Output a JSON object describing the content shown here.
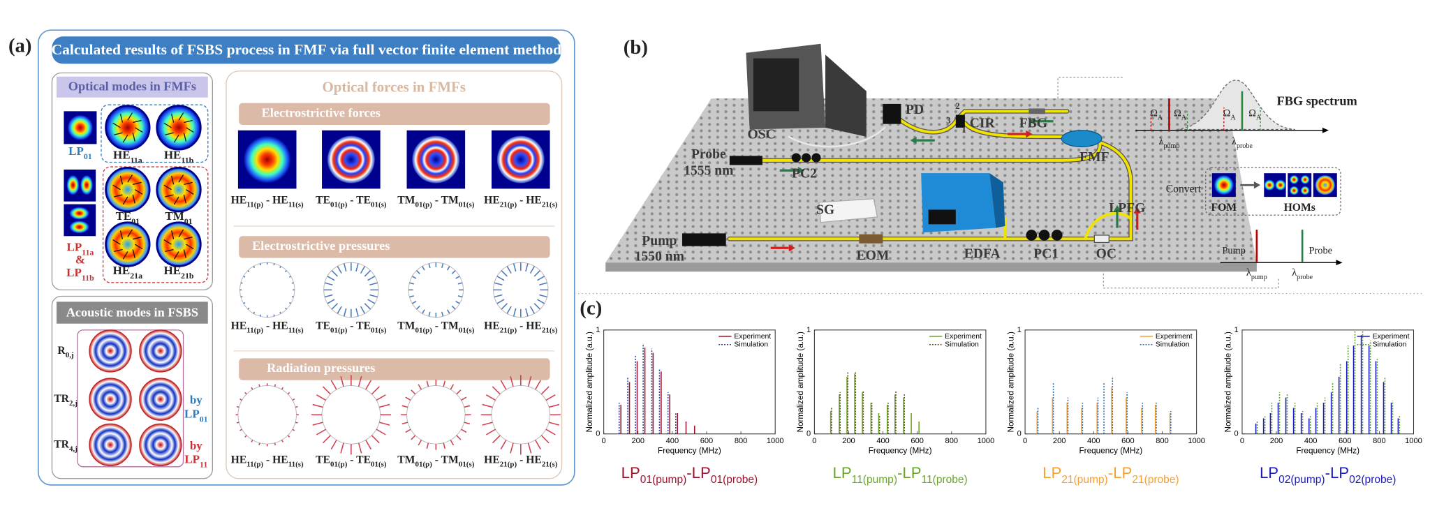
{
  "panel_a": {
    "label": "(a)",
    "title": "Calculated results of FSBS process in FMF via full vector finite element method",
    "optical_modes": {
      "heading": "Optical modes in FMFs",
      "modes": [
        [
          "LP",
          "01"
        ],
        [
          "HE",
          "11a"
        ],
        [
          "HE",
          "11b"
        ],
        [
          "TE",
          "01"
        ],
        [
          "TM",
          "01"
        ],
        [
          "HE",
          "21a"
        ],
        [
          "HE",
          "21b"
        ]
      ],
      "lp11": [
        [
          "LP",
          "11a"
        ],
        [
          "&"
        ],
        [
          "LP",
          "11b"
        ]
      ]
    },
    "acoustic_modes": {
      "heading": "Acoustic modes in FSBS",
      "rows": [
        [
          "R",
          "0,j"
        ],
        [
          "TR",
          "2,j"
        ],
        [
          "TR",
          "4,j"
        ]
      ],
      "by_lp01": [
        [
          "by"
        ],
        [
          "LP",
          "01"
        ]
      ],
      "by_lp11": [
        [
          "by"
        ],
        [
          "LP",
          "11"
        ]
      ]
    },
    "optical_forces": {
      "heading": "Optical forces in FMFs",
      "sections": [
        {
          "title": "Electrostrictive forces",
          "labels": [
            [
              "HE",
              "11(p)",
              " - HE",
              "11(s)"
            ],
            [
              "TE",
              "01(p)",
              " - TE",
              "01(s)"
            ],
            [
              "TM",
              "01(p)",
              " - TM",
              "01(s)"
            ],
            [
              "HE",
              "21(p)",
              " - HE",
              "21(s)"
            ]
          ]
        },
        {
          "title": "Electrostrictive pressures",
          "labels": [
            [
              "HE",
              "11(p)",
              " - HE",
              "11(s)"
            ],
            [
              "TE",
              "01(p)",
              " - TE",
              "01(s)"
            ],
            [
              "TM",
              "01(p)",
              " - TM",
              "01(s)"
            ],
            [
              "HE",
              "21(p)",
              " - HE",
              "21(s)"
            ]
          ]
        },
        {
          "title": "Radiation pressures",
          "labels": [
            [
              "HE",
              "11(p)",
              " - HE",
              "11(s)"
            ],
            [
              "TE",
              "01(p)",
              " - TE",
              "01(s)"
            ],
            [
              "TM",
              "01(p)",
              " - TM",
              "01(s)"
            ],
            [
              "HE",
              "21(p)",
              " - HE",
              "21(s)"
            ]
          ]
        }
      ]
    }
  },
  "panel_b": {
    "label": "(b)",
    "setup": [
      [
        "OSC"
      ],
      [
        "PD"
      ],
      [
        "2"
      ],
      [
        "3"
      ],
      [
        "1"
      ],
      [
        "CIR"
      ],
      [
        "FBG"
      ],
      [
        "Probe"
      ],
      [
        "1555 nm"
      ],
      [
        "PC2"
      ],
      [
        "FMF"
      ],
      [
        "SG"
      ],
      [
        "Pump"
      ],
      [
        "1550 nm"
      ],
      [
        "EOM"
      ],
      [
        "EDFA"
      ],
      [
        "PC1"
      ],
      [
        "OC"
      ],
      [
        "LPFG"
      ]
    ],
    "fbg": [
      [
        "FBG spectrum"
      ],
      [
        "Ω",
        "A"
      ],
      [
        "Ω",
        "A"
      ],
      [
        "Ω",
        "A"
      ],
      [
        "Ω",
        "A"
      ],
      [
        "λ",
        "pump"
      ],
      [
        "λ",
        "probe"
      ]
    ],
    "convert": [
      [
        "Convert"
      ],
      [
        "FOM"
      ],
      [
        "HOMs"
      ]
    ],
    "pump_probe": [
      [
        "Pump"
      ],
      [
        "Probe"
      ],
      [
        "λ",
        "pump"
      ],
      [
        "λ",
        "probe"
      ]
    ]
  },
  "panel_c": {
    "label": "(c)"
  },
  "chart_data": [
    {
      "type": "stem",
      "x_label": "Frequency (MHz)",
      "y_label": "Normalized amplitude (a.u.)",
      "caption": [
        "LP",
        "01(pump)",
        "-LP",
        "01(probe)"
      ],
      "caption_color": "#a0122c",
      "xlim": [
        0,
        1000
      ],
      "ylim": [
        0,
        1
      ],
      "xticks": [
        0,
        200,
        400,
        600,
        800,
        1000
      ],
      "yticks": [
        0,
        1
      ],
      "legend": "upper right",
      "series": [
        {
          "name": "Experiment",
          "color": "#a0122c",
          "style": "solid",
          "x": [
            100,
            150,
            195,
            240,
            288,
            335,
            385,
            430,
            480,
            530
          ],
          "values": [
            0.28,
            0.5,
            0.7,
            0.83,
            0.78,
            0.6,
            0.38,
            0.2,
            0.12,
            0.08
          ]
        },
        {
          "name": "Simulation",
          "color": "#2a3f9a",
          "style": "dotted",
          "x": [
            90,
            140,
            185,
            230,
            280,
            325,
            375,
            420
          ],
          "values": [
            0.3,
            0.55,
            0.75,
            0.87,
            0.82,
            0.62,
            0.4,
            0.2
          ]
        }
      ]
    },
    {
      "type": "stem",
      "x_label": "Frequency (MHz)",
      "y_label": "Normalized amplitude (a.u.)",
      "caption": [
        "LP",
        "11(pump)",
        "-LP",
        "11(probe)"
      ],
      "caption_color": "#6aa52a",
      "xlim": [
        0,
        1000
      ],
      "ylim": [
        0,
        1
      ],
      "xticks": [
        0,
        200,
        400,
        600,
        800,
        1000
      ],
      "yticks": [
        0,
        1
      ],
      "legend": "upper right",
      "series": [
        {
          "name": "Experiment",
          "color": "#6aa52a",
          "style": "solid",
          "x": [
            95,
            145,
            190,
            235,
            280,
            330,
            375,
            425,
            470,
            520,
            565,
            610
          ],
          "values": [
            0.22,
            0.38,
            0.55,
            0.58,
            0.4,
            0.3,
            0.2,
            0.28,
            0.38,
            0.35,
            0.2,
            0.12
          ]
        },
        {
          "name": "Simulation",
          "color": "#5a4a20",
          "style": "dotted",
          "x": [
            100,
            150,
            195,
            240,
            285,
            335,
            380,
            430,
            475,
            525
          ],
          "values": [
            0.25,
            0.4,
            0.6,
            0.6,
            0.42,
            0.3,
            0.18,
            0.3,
            0.42,
            0.38
          ]
        }
      ]
    },
    {
      "type": "stem",
      "x_label": "Frequency (MHz)",
      "y_label": "Normalized amplitude (a.u.)",
      "caption": [
        "LP",
        "21(pump)",
        "-LP",
        "21(probe)"
      ],
      "caption_color": "#f5a030",
      "xlim": [
        0,
        1000
      ],
      "ylim": [
        0,
        1
      ],
      "xticks": [
        0,
        200,
        400,
        600,
        800,
        1000
      ],
      "yticks": [
        0,
        1
      ],
      "legend": "upper right",
      "series": [
        {
          "name": "Experiment",
          "color": "#f5a030",
          "style": "solid",
          "x": [
            70,
            160,
            245,
            330,
            420,
            505,
            590,
            680,
            760,
            845
          ],
          "values": [
            0.22,
            0.35,
            0.3,
            0.25,
            0.3,
            0.45,
            0.35,
            0.25,
            0.28,
            0.2
          ]
        },
        {
          "name": "Simulation",
          "color": "#2a6ab0",
          "style": "dotted",
          "x": [
            75,
            165,
            250,
            335,
            425,
            460,
            510,
            595,
            685,
            765,
            850
          ],
          "values": [
            0.25,
            0.5,
            0.35,
            0.3,
            0.35,
            0.5,
            0.55,
            0.4,
            0.3,
            0.3,
            0.22
          ]
        }
      ]
    },
    {
      "type": "stem",
      "x_label": "Frequency (MHz)",
      "y_label": "Normalized amplitude (a.u.)",
      "caption": [
        "LP",
        "02(pump)",
        "-LP",
        "02(probe)"
      ],
      "caption_color": "#1a1ac0",
      "xlim": [
        0,
        1000
      ],
      "ylim": [
        0,
        1
      ],
      "xticks": [
        0,
        200,
        400,
        600,
        800,
        1000
      ],
      "yticks": [
        0,
        1
      ],
      "legend": "upper right",
      "series": [
        {
          "name": "Experiment",
          "color": "#1a1ac0",
          "style": "solid",
          "x": [
            80,
            125,
            165,
            210,
            255,
            300,
            345,
            390,
            430,
            475,
            520,
            565,
            610,
            650,
            695,
            740,
            780,
            825,
            870,
            910
          ],
          "values": [
            0.1,
            0.15,
            0.2,
            0.3,
            0.35,
            0.25,
            0.2,
            0.15,
            0.25,
            0.3,
            0.4,
            0.55,
            0.7,
            0.85,
            0.95,
            0.85,
            0.7,
            0.5,
            0.3,
            0.15
          ]
        },
        {
          "name": "Simulation",
          "color": "#5a9a20",
          "style": "dotted",
          "x": [
            88,
            133,
            173,
            218,
            263,
            308,
            353,
            398,
            438,
            483,
            528,
            573,
            618,
            658,
            703,
            748,
            788,
            833,
            878,
            918
          ],
          "values": [
            0.12,
            0.17,
            0.3,
            0.4,
            0.38,
            0.3,
            0.22,
            0.18,
            0.3,
            0.35,
            0.5,
            0.68,
            0.85,
            1.0,
            1.0,
            0.9,
            0.72,
            0.55,
            0.32,
            0.18
          ]
        }
      ]
    }
  ]
}
